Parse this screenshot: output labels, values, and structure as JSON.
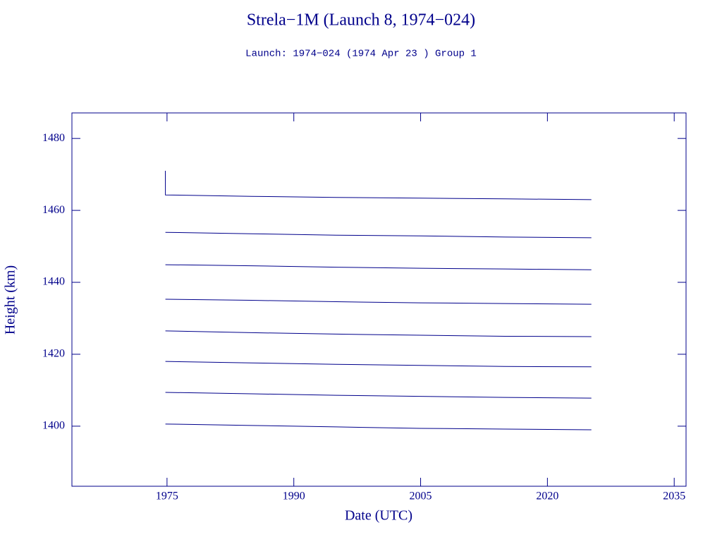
{
  "chart_data": {
    "type": "line",
    "title": "Strela−1M (Launch 8, 1974−024)",
    "subtitle": "Launch: 1974−024  (1974 Apr 23 )  Group 1",
    "x_label": "Date (UTC)",
    "y_label": "Height (km)",
    "color": "#00008b",
    "x": [
      1974.8,
      1974.81,
      1985,
      1995,
      2005,
      2015,
      2025.2
    ],
    "series": [
      {
        "color": "#00008b",
        "values": [
          1471,
          1464.3,
          1463.9,
          1463.6,
          1463.4,
          1463.2,
          1463.0
        ]
      },
      {
        "color": "#00008b",
        "values": [
          null,
          1453.9,
          1453.5,
          1453.1,
          1452.9,
          1452.6,
          1452.4
        ]
      },
      {
        "color": "#00008b",
        "values": [
          null,
          1444.9,
          1444.6,
          1444.2,
          1443.9,
          1443.7,
          1443.5
        ]
      },
      {
        "color": "#00008b",
        "values": [
          null,
          1435.3,
          1435.0,
          1434.6,
          1434.3,
          1434.1,
          1433.9
        ]
      },
      {
        "color": "#00008b",
        "values": [
          null,
          1426.5,
          1426.0,
          1425.6,
          1425.3,
          1425.0,
          1424.9
        ]
      },
      {
        "color": "#00008b",
        "values": [
          null,
          1418.0,
          1417.6,
          1417.2,
          1416.9,
          1416.6,
          1416.5
        ]
      },
      {
        "color": "#00008b",
        "values": [
          null,
          1409.4,
          1409.0,
          1408.6,
          1408.3,
          1408.0,
          1407.8
        ]
      },
      {
        "color": "#00008b",
        "values": [
          null,
          1400.6,
          1400.2,
          1399.8,
          1399.4,
          1399.2,
          1399.0
        ]
      }
    ],
    "xlim": [
      1963.75,
      2036.4
    ],
    "xticks": [
      1975,
      1990,
      2005,
      2020,
      2035
    ],
    "ylim": [
      1383.3,
      1487.1
    ],
    "yticks": [
      1400,
      1420,
      1440,
      1460,
      1480
    ]
  }
}
